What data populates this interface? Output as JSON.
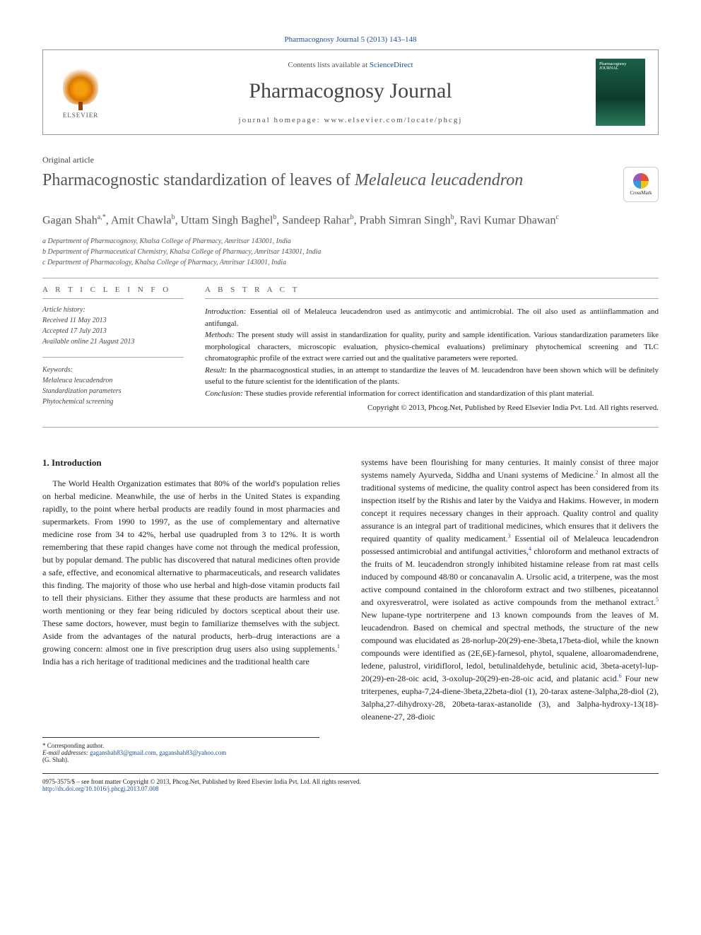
{
  "citation": "Pharmacognosy Journal 5 (2013) 143–148",
  "header": {
    "contents_prefix": "Contents lists available at ",
    "contents_link": "ScienceDirect",
    "journal_name": "Pharmacognosy Journal",
    "homepage_prefix": "journal homepage: ",
    "homepage_url": "www.elsevier.com/locate/phcgj",
    "publisher": "ELSEVIER",
    "cover_label": "Pharmacognosy JOURNAL"
  },
  "article": {
    "type": "Original article",
    "title_plain": "Pharmacognostic standardization of leaves of ",
    "title_italic": "Melaleuca leucadendron",
    "crossmark": "CrossMark"
  },
  "authors": {
    "list": "Gagan Shah",
    "a1_sup": "a,*",
    "a2": ", Amit Chawla",
    "a2_sup": "b",
    "a3": ", Uttam Singh Baghel",
    "a3_sup": "b",
    "a4": ", Sandeep Rahar",
    "a4_sup": "b",
    "a5": ", Prabh Simran Singh",
    "a5_sup": "b",
    "a6": ", Ravi Kumar Dhawan",
    "a6_sup": "c"
  },
  "affiliations": {
    "a": "a Department of Pharmacognosy, Khalsa College of Pharmacy, Amritsar 143001, India",
    "b": "b Department of Pharmaceutical Chemistry, Khalsa College of Pharmacy, Amritsar 143001, India",
    "c": "c Department of Pharmacology, Khalsa College of Pharmacy, Amritsar 143001, India"
  },
  "info": {
    "heading": "A R T I C L E  I N F O",
    "history_label": "Article history:",
    "received": "Received 11 May 2013",
    "accepted": "Accepted 17 July 2013",
    "online": "Available online 21 August 2013",
    "keywords_label": "Keywords:",
    "kw1": "Melaleuca leucadendron",
    "kw2": "Standardization parameters",
    "kw3": "Phytochemical screening"
  },
  "abstract": {
    "heading": "A B S T R A C T",
    "intro_label": "Introduction:",
    "intro": " Essential oil of Melaleuca leucadendron used as antimycotic and antimicrobial. The oil also used as antiinflammation and antifungal.",
    "methods_label": "Methods:",
    "methods": " The present study will assist in standardization for quality, purity and sample identification. Various standardization parameters like morphological characters, microscopic evaluation, physico-chemical evaluations) preliminary phytochemical screening and TLC chromatographic profile of the extract were carried out and the qualitative parameters were reported.",
    "result_label": "Result:",
    "result": " In the pharmacognostical studies, in an attempt to standardize the leaves of M. leucadendron have been shown which will be definitely useful to the future scientist for the identification of the plants.",
    "conclusion_label": "Conclusion:",
    "conclusion": " These studies provide referential information for correct identification and standardization of this plant material.",
    "copyright": "Copyright © 2013, Phcog.Net, Published by Reed Elsevier India Pvt. Ltd. All rights reserved."
  },
  "body": {
    "section_heading": "1.  Introduction",
    "col1": "The World Health Organization estimates that 80% of the world's population relies on herbal medicine. Meanwhile, the use of herbs in the United States is expanding rapidly, to the point where herbal products are readily found in most pharmacies and supermarkets. From 1990 to 1997, as the use of complementary and alternative medicine rose from 34 to 42%, herbal use quadrupled from 3 to 12%. It is worth remembering that these rapid changes have come not through the medical profession, but by popular demand. The public has discovered that natural medicines often provide a safe, effective, and economical alternative to pharmaceuticals, and research validates this finding. The majority of those who use herbal and high-dose vitamin products fail to tell their physicians. Either they assume that these products are harmless and not worth mentioning or they fear being ridiculed by doctors sceptical about their use. These same doctors, however, must begin to familiarize themselves with the subject. Aside from the advantages of the natural products, herb–drug interactions are a growing concern: almost one in five prescription drug users also using supplements.",
    "col1_sup1": "1",
    "col1_tail": " India has a rich heritage of traditional medicines and the traditional health care",
    "col2_a": "systems have been flourishing for many centuries. It mainly consist of three major systems namely Ayurveda, Siddha and Unani systems of Medicine.",
    "col2_sup2": "2",
    "col2_b": " In almost all the traditional systems of medicine, the quality control aspect has been considered from its inspection itself by the Rishis and later by the Vaidya and Hakims. However, in modern concept it requires necessary changes in their approach. Quality control and quality assurance is an integral part of traditional medicines, which ensures that it delivers the required quantity of quality medicament.",
    "col2_sup3": "3",
    "col2_c": " Essential oil of Melaleuca leucadendron possessed antimicrobial and antifungal activities,",
    "col2_sup4": "4",
    "col2_d": " chloroform and methanol extracts of the fruits of M. leucadendron strongly inhibited histamine release from rat mast cells induced by compound 48/80 or concanavalin A. Ursolic acid, a triterpene, was the most active compound contained in the chloroform extract and two stilbenes, piceatannol and oxyresveratrol, were isolated as active compounds from the methanol extract.",
    "col2_sup5": "5",
    "col2_e": " New lupane-type nortriterpene and 13 known compounds from the leaves of M. leucadendron. Based on chemical and spectral methods, the structure of the new compound was elucidated as 28-norlup-20(29)-ene-3beta,17beta-diol, while the known compounds were identified as (2E,6E)-farnesol, phytol, squalene, alloaromadendrene, ledene, palustrol, viridiflorol, ledol, betulinaldehyde, betulinic acid, 3beta-acetyl-lup-20(29)-en-28-oic acid, 3-oxolup-20(29)-en-28-oic acid, and platanic acid.",
    "col2_sup6": "6",
    "col2_f": " Four new triterpenes, eupha-7,24-diene-3beta,22beta-diol (1), 20-tarax astene-3alpha,28-diol (2), 3alpha,27-dihydroxy-28, 20beta-tarax-astanolide (3), and 3alpha-hydroxy-13(18)-oleanene-27, 28-dioic"
  },
  "footnotes": {
    "corresponding": "* Corresponding author.",
    "email_label": "E-mail addresses:",
    "email1": "gaganshah83@gmail.com",
    "sep": ", ",
    "email2": "gaganshah83@yahoo.com",
    "name": "(G. Shah)."
  },
  "bottom": {
    "issn": "0975-3575/$ – see front matter Copyright © 2013, Phcog.Net, Published by Reed Elsevier India Pvt. Ltd. All rights reserved.",
    "doi": "http://dx.doi.org/10.1016/j.phcgj.2013.07.008"
  },
  "colors": {
    "link": "#1a4f8f",
    "text": "#222222",
    "muted": "#555555",
    "border": "#aaaaaa"
  }
}
